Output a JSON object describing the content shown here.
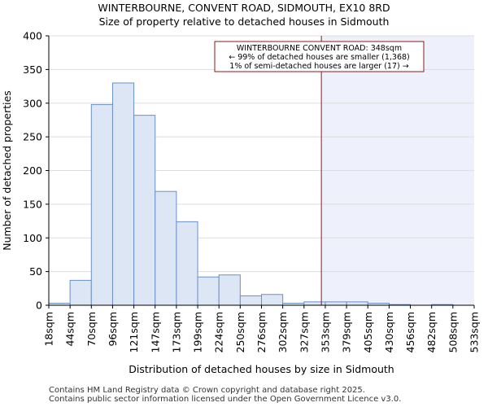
{
  "chart_data": {
    "type": "bar",
    "title": "WINTERBOURNE, CONVENT ROAD, SIDMOUTH, EX10 8RD",
    "subtitle": "Size of property relative to detached houses in Sidmouth",
    "xlabel": "Distribution of detached houses by size in Sidmouth",
    "ylabel": "Number of detached properties",
    "ylim": [
      0,
      400
    ],
    "yticks": [
      0,
      50,
      100,
      150,
      200,
      250,
      300,
      350,
      400
    ],
    "xticks": [
      "18sqm",
      "44sqm",
      "70sqm",
      "96sqm",
      "121sqm",
      "147sqm",
      "173sqm",
      "199sqm",
      "224sqm",
      "250sqm",
      "276sqm",
      "302sqm",
      "327sqm",
      "353sqm",
      "379sqm",
      "405sqm",
      "430sqm",
      "456sqm",
      "482sqm",
      "508sqm",
      "533sqm"
    ],
    "values": [
      3,
      37,
      298,
      330,
      282,
      169,
      124,
      42,
      45,
      14,
      16,
      3,
      5,
      5,
      5,
      3,
      1,
      0,
      1,
      0
    ],
    "marker": {
      "value": 348,
      "label": "WINTERBOURNE CONVENT ROAD: 348sqm"
    },
    "annotation": [
      "WINTERBOURNE CONVENT ROAD: 348sqm",
      "← 99% of detached houses are smaller (1,368)",
      "1% of semi-detached houses are larger (17) →"
    ],
    "colors": {
      "bar_fill": "#dce6f5",
      "bar_stroke": "#6b8fc7",
      "marker": "#8b1a1a",
      "highlight": "#eef1fb",
      "grid": "#dddddd"
    }
  },
  "footer": [
    "Contains HM Land Registry data © Crown copyright and database right 2025.",
    "Contains public sector information licensed under the Open Government Licence v3.0."
  ]
}
